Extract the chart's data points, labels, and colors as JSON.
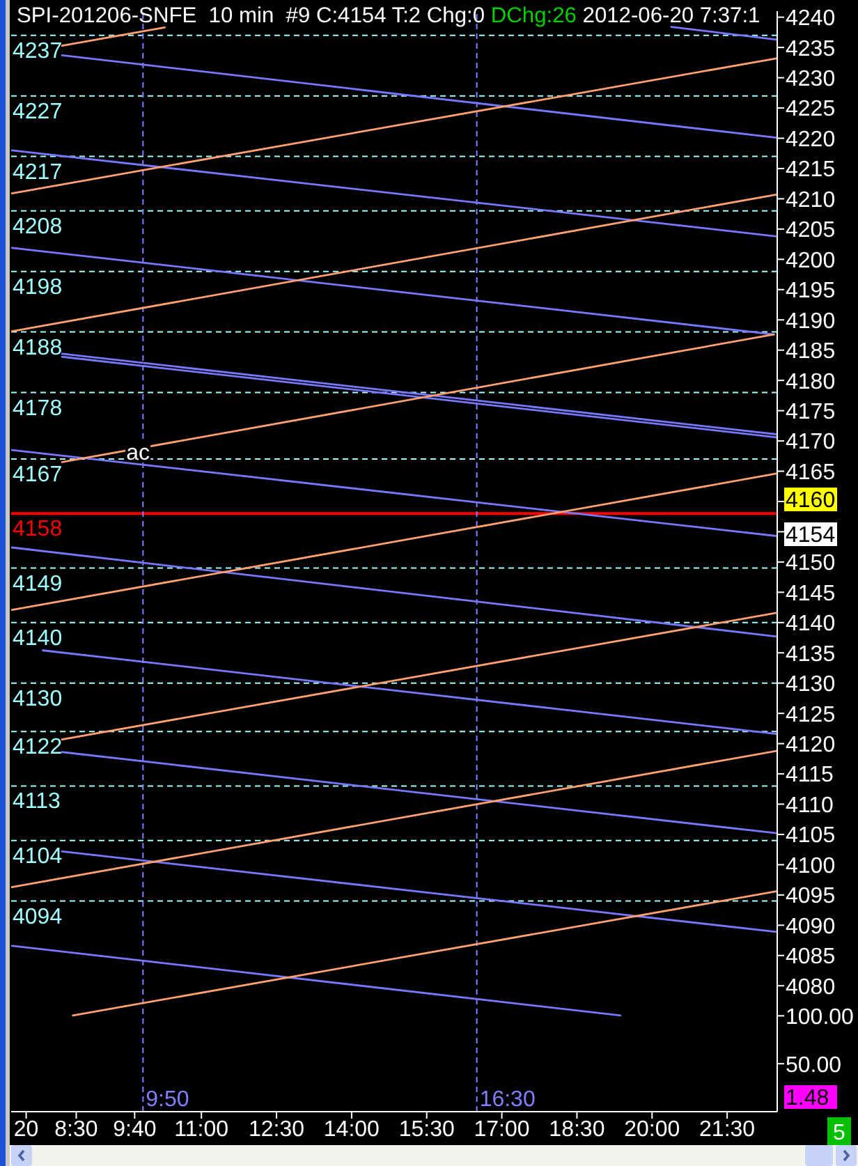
{
  "chart_data": {
    "type": "line",
    "title": "SPI-201206-SNFE  10 min  #9 C:4154 T:2 Chg:0",
    "subtitle": "DChg:26",
    "annotations": [
      "2012-06-20 7:37:1",
      {
        "text": "ac",
        "x": "2012-06-20T09:44",
        "y": 4168.1
      },
      "4160",
      "4154",
      "1.48",
      "5"
    ],
    "xlim": [
      "2012-06-20T07:12",
      "2012-06-20T22:30"
    ],
    "xticks": [
      {
        "value": "2012-06-20T07:30",
        "label": "20"
      },
      {
        "value": "2012-06-20T08:30",
        "label": "8:30"
      },
      {
        "value": "2012-06-20T09:40",
        "label": "9:40"
      },
      {
        "value": "2012-06-20T11:00",
        "label": "11:00"
      },
      {
        "value": "2012-06-20T12:30",
        "label": "12:30"
      },
      {
        "value": "2012-06-20T14:00",
        "label": "14:00"
      },
      {
        "value": "2012-06-20T15:30",
        "label": "15:30"
      },
      {
        "value": "2012-06-20T17:00",
        "label": "17:00"
      },
      {
        "value": "2012-06-20T18:30",
        "label": "18:30"
      },
      {
        "value": "2012-06-20T20:00",
        "label": "20:00"
      },
      {
        "value": "2012-06-20T21:30",
        "label": "21:30"
      }
    ],
    "ylim": [
      4059.2,
      4241
    ],
    "yticks": [
      4080,
      4085,
      4090,
      4095,
      4100,
      4105,
      4110,
      4115,
      4120,
      4125,
      4130,
      4135,
      4140,
      4145,
      4150,
      {
        "value": 4155,
        "label": null
      },
      {
        "value": 4160,
        "label": null
      },
      4165,
      4170,
      4175,
      4180,
      4185,
      4190,
      4195,
      4200,
      4205,
      4210,
      4215,
      4220,
      4225,
      4230,
      4235,
      4240
    ],
    "y2lim": [
      0,
      1148
    ],
    "y2ticks": [
      {
        "value": 50,
        "label": "50.00"
      },
      {
        "value": 100,
        "label": "100.00"
      }
    ],
    "marker": "none",
    "series": [
      {
        "color": "#7878ff",
        "x": [
          "2012-06-20T20:23",
          "2012-06-20T22:29"
        ],
        "values": [
          4238.4,
          4236.3
        ]
      },
      {
        "color": "#7878ff",
        "x": [
          "2012-06-20T08:13",
          "2012-06-20T22:29"
        ],
        "values": [
          4233.7,
          4220.1
        ]
      },
      {
        "color": "#7878ff",
        "x": [
          "2012-06-20T07:13",
          "2012-06-20T22:29"
        ],
        "values": [
          4218.0,
          4203.8
        ]
      },
      {
        "color": "#7878ff",
        "x": [
          "2012-06-20T07:13",
          "2012-06-20T22:26"
        ],
        "values": [
          4201.9,
          4187.6
        ]
      },
      {
        "color": "#7878ff",
        "x": [
          "2012-06-20T08:13",
          "2012-06-20T22:29"
        ],
        "values": [
          4184.4,
          4171.1
        ]
      },
      {
        "color": "#7878ff",
        "x": [
          "2012-06-20T08:13",
          "2012-06-20T22:29"
        ],
        "values": [
          4183.9,
          4170.6
        ]
      },
      {
        "color": "#7878ff",
        "x": [
          "2012-06-20T07:13",
          "2012-06-20T22:29"
        ],
        "values": [
          4168.5,
          4154.3
        ]
      },
      {
        "color": "#7878ff",
        "x": [
          "2012-06-20T07:13",
          "2012-06-20T22:29"
        ],
        "values": [
          4152.4,
          4137.7
        ]
      },
      {
        "color": "#7878ff",
        "x": [
          "2012-06-20T07:50",
          "2012-06-20T22:29"
        ],
        "values": [
          4135.4,
          4121.6
        ]
      },
      {
        "color": "#7878ff",
        "x": [
          "2012-06-20T08:13",
          "2012-06-20T22:29"
        ],
        "values": [
          4118.6,
          4105.2
        ]
      },
      {
        "color": "#7878ff",
        "x": [
          "2012-06-20T08:13",
          "2012-06-20T22:29"
        ],
        "values": [
          4102.2,
          4088.9
        ]
      },
      {
        "color": "#7878ff",
        "x": [
          "2012-06-20T07:13",
          "2012-06-20T19:22"
        ],
        "values": [
          4086.6,
          4075.1
        ]
      },
      {
        "color": "#ffa070",
        "x": [
          "2012-06-20T08:13",
          "2012-06-20T10:16"
        ],
        "values": [
          4235.3,
          4238.3
        ]
      },
      {
        "color": "#ffa070",
        "x": [
          "2012-06-20T07:13",
          "2012-06-20T22:29"
        ],
        "values": [
          4210.9,
          4233.2
        ]
      },
      {
        "color": "#ffa070",
        "x": [
          "2012-06-20T07:13",
          "2012-06-20T22:29"
        ],
        "values": [
          4188.1,
          4210.7
        ]
      },
      {
        "color": "#ffa070",
        "x": [
          "2012-06-20T08:13",
          "2012-06-20T22:26"
        ],
        "values": [
          4166.5,
          4187.6
        ]
      },
      {
        "color": "#ffa070",
        "x": [
          "2012-06-20T07:13",
          "2012-06-20T22:29"
        ],
        "values": [
          4142.1,
          4164.6
        ]
      },
      {
        "color": "#ffa070",
        "x": [
          "2012-06-20T08:13",
          "2012-06-20T22:29"
        ],
        "values": [
          4120.7,
          4141.6
        ]
      },
      {
        "color": "#ffa070",
        "x": [
          "2012-06-20T07:13",
          "2012-06-20T22:29"
        ],
        "values": [
          4096.3,
          4118.8
        ]
      },
      {
        "color": "#ffa070",
        "x": [
          "2012-06-20T08:26",
          "2012-06-20T22:29"
        ],
        "values": [
          4075.1,
          4095.6
        ]
      }
    ],
    "ref_lines": [
      {
        "axis": "y",
        "value": 4237,
        "label": "4237",
        "color": "#a0ffff",
        "line_style": "dashed"
      },
      {
        "axis": "y",
        "value": 4227,
        "label": "4227",
        "color": "#a0ffff",
        "line_style": "dashed"
      },
      {
        "axis": "y",
        "value": 4217,
        "label": "4217",
        "color": "#a0ffff",
        "line_style": "dashed"
      },
      {
        "axis": "y",
        "value": 4208,
        "label": "4208",
        "color": "#a0ffff",
        "line_style": "dashed"
      },
      {
        "axis": "y",
        "value": 4198,
        "label": "4198",
        "color": "#a0ffff",
        "line_style": "dashed"
      },
      {
        "axis": "y",
        "value": 4188,
        "label": "4188",
        "color": "#a0ffff",
        "line_style": "dashed"
      },
      {
        "axis": "y",
        "value": 4178,
        "label": "4178",
        "color": "#a0ffff",
        "line_style": "dashed"
      },
      {
        "axis": "y",
        "value": 4167,
        "label": "4167",
        "color": "#a0ffff",
        "line_style": "dashed"
      },
      {
        "axis": "y",
        "value": 4158,
        "label": "4158",
        "color": "#ff0000",
        "line_style": "solid"
      },
      {
        "axis": "y",
        "value": 4149,
        "label": "4149",
        "color": "#a0ffff",
        "line_style": "dashed"
      },
      {
        "axis": "y",
        "value": 4140,
        "label": "4140",
        "color": "#a0ffff",
        "line_style": "dashed"
      },
      {
        "axis": "y",
        "value": 4130,
        "label": "4130",
        "color": "#a0ffff",
        "line_style": "dashed"
      },
      {
        "axis": "y",
        "value": 4122,
        "label": "4122",
        "color": "#a0ffff",
        "line_style": "dashed"
      },
      {
        "axis": "y",
        "value": 4113,
        "label": "4113",
        "color": "#a0ffff",
        "line_style": "dashed"
      },
      {
        "axis": "y",
        "value": 4104,
        "label": "4104",
        "color": "#a0ffff",
        "line_style": "dashed"
      },
      {
        "axis": "y",
        "value": 4094,
        "label": "4094",
        "color": "#a0ffff",
        "line_style": "dashed"
      },
      {
        "axis": "x",
        "value": "2012-06-20T09:50",
        "label": "9:50",
        "color": "#8080ff",
        "line_style": "dashed"
      },
      {
        "axis": "x",
        "value": "2012-06-20T16:30",
        "label": "16:30",
        "color": "#8080ff",
        "line_style": "dashed"
      }
    ]
  }
}
